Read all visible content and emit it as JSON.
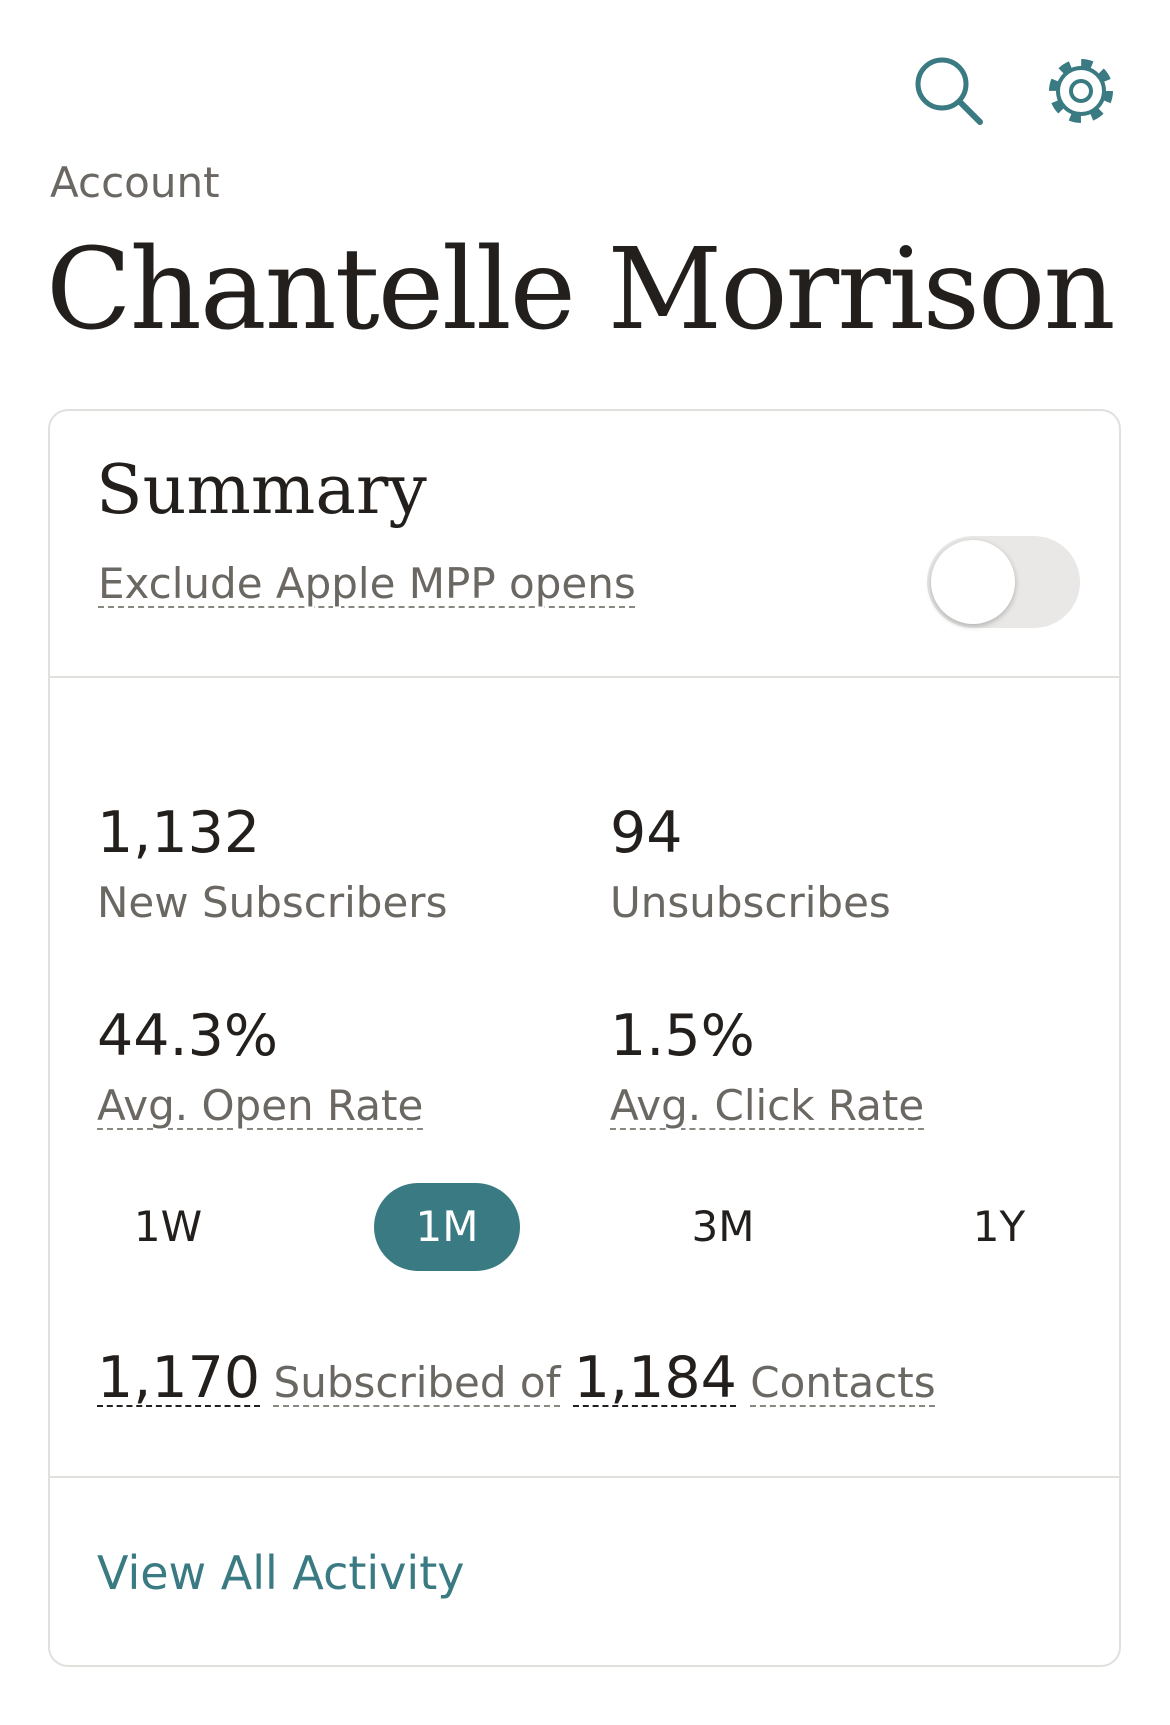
{
  "header": {
    "section": "Account",
    "title": "Chantelle Morrison"
  },
  "summary": {
    "title": "Summary",
    "toggle_label": "Exclude Apple MPP opens",
    "stats": [
      {
        "value": "1,132",
        "label": "New Subscribers"
      },
      {
        "value": "94",
        "label": "Unsubscribes"
      },
      {
        "value": "44.3%",
        "label": "Avg. Open Rate"
      },
      {
        "value": "1.5%",
        "label": "Avg. Click Rate"
      }
    ],
    "periods": [
      "1W",
      "1M",
      "3M",
      "1Y"
    ],
    "selected_period": "1M",
    "footer": {
      "subscribed": "1,170",
      "middle": "Subscribed of",
      "contacts": "1,184",
      "end": "Contacts"
    },
    "link": "View All Activity"
  }
}
